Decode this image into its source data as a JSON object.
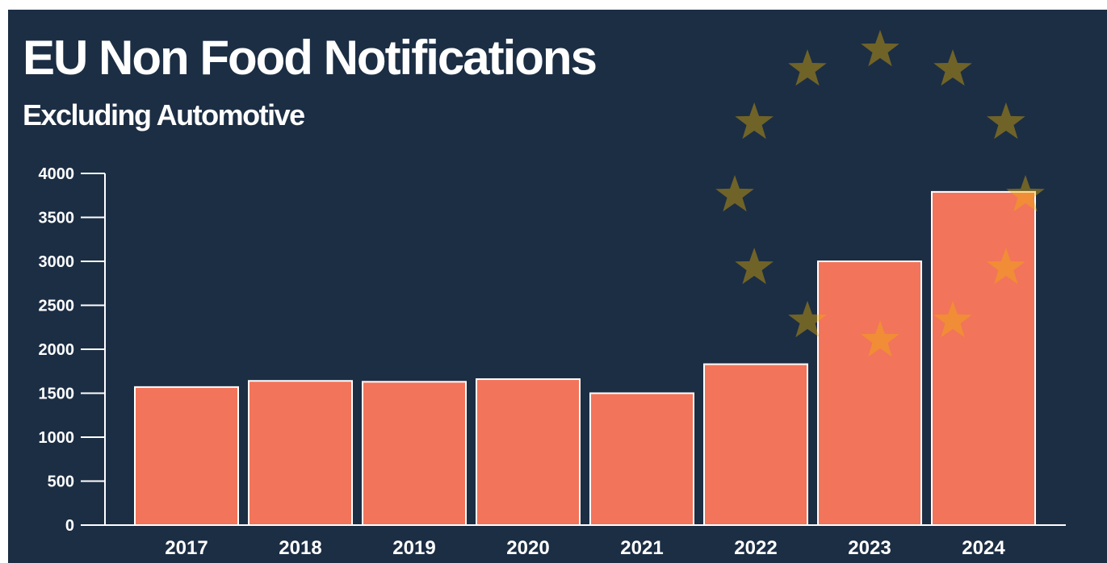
{
  "chart_data": {
    "type": "bar",
    "title": "EU Non Food Notifications",
    "subtitle": "Excluding Automotive",
    "categories": [
      "2017",
      "2018",
      "2019",
      "2020",
      "2021",
      "2022",
      "2023",
      "2024"
    ],
    "values": [
      1570,
      1640,
      1630,
      1660,
      1500,
      1830,
      3000,
      3790
    ],
    "color": "#f2745a",
    "ylim": [
      0,
      4000
    ],
    "yticks": [
      0,
      500,
      1000,
      1500,
      2000,
      2500,
      3000,
      3500,
      4000
    ],
    "grid": false
  }
}
